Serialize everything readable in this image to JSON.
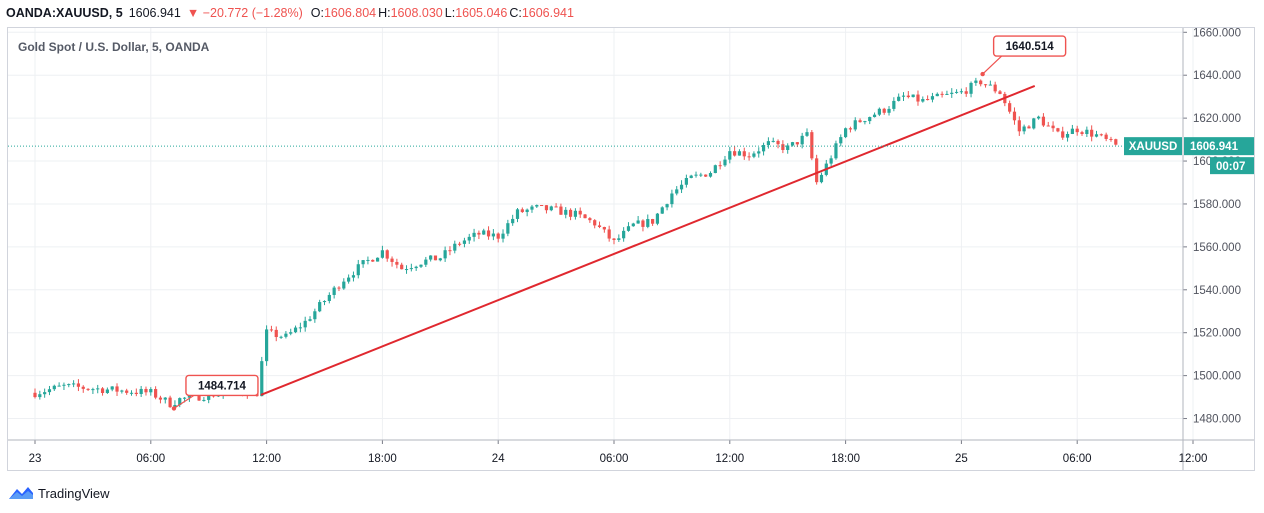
{
  "header": {
    "symbol": "OANDA:XAUUSD, 5",
    "last": "1606.941",
    "arrow": "▼",
    "change": "−20.772 (−1.28%)",
    "open_label": "O:",
    "open": "1606.804",
    "high_label": "H:",
    "high": "1608.030",
    "low_label": "L:",
    "low": "1605.046",
    "close_label": "C:",
    "close": "1606.941"
  },
  "chart_data": {
    "type": "candlestick",
    "title": "Gold Spot / U.S. Dollar, 5, OANDA",
    "ylim": [
      1470,
      1662
    ],
    "y_ticks": [
      "1660.000",
      "1640.000",
      "1620.000",
      "1600.000",
      "1580.000",
      "1560.000",
      "1540.000",
      "1520.000",
      "1500.000",
      "1480.000"
    ],
    "x_ticks": [
      "23",
      "06:00",
      "12:00",
      "18:00",
      "24",
      "06:00",
      "12:00",
      "18:00",
      "25",
      "06:00",
      "12:00"
    ],
    "price_path_hours": [
      [
        0,
        1492
      ],
      [
        1.5,
        1495
      ],
      [
        3,
        1494
      ],
      [
        4.5,
        1493
      ],
      [
        6,
        1492
      ],
      [
        7,
        1487
      ],
      [
        7.5,
        1489
      ],
      [
        9,
        1491
      ],
      [
        10.5,
        1493
      ],
      [
        11.5,
        1492
      ],
      [
        12,
        1520
      ],
      [
        13,
        1518
      ],
      [
        14,
        1525
      ],
      [
        15,
        1535
      ],
      [
        16,
        1545
      ],
      [
        17,
        1552
      ],
      [
        18,
        1558
      ],
      [
        19,
        1550
      ],
      [
        20,
        1553
      ],
      [
        21,
        1555
      ],
      [
        22,
        1562
      ],
      [
        23,
        1566
      ],
      [
        24,
        1565
      ],
      [
        25,
        1576
      ],
      [
        26,
        1578
      ],
      [
        27,
        1577
      ],
      [
        28,
        1575
      ],
      [
        29,
        1571
      ],
      [
        30,
        1562
      ],
      [
        31,
        1570
      ],
      [
        32,
        1572
      ],
      [
        33,
        1585
      ],
      [
        34,
        1592
      ],
      [
        35,
        1595
      ],
      [
        36,
        1605
      ],
      [
        37,
        1603
      ],
      [
        38,
        1608
      ],
      [
        39,
        1606
      ],
      [
        40,
        1612
      ],
      [
        40.5,
        1590
      ],
      [
        41,
        1598
      ],
      [
        42,
        1615
      ],
      [
        43,
        1620
      ],
      [
        44,
        1624
      ],
      [
        45,
        1630
      ],
      [
        46,
        1628
      ],
      [
        47,
        1630
      ],
      [
        48,
        1632
      ],
      [
        49,
        1637
      ],
      [
        50,
        1632
      ],
      [
        51,
        1614
      ],
      [
        52,
        1620
      ],
      [
        53,
        1612
      ],
      [
        54,
        1615
      ],
      [
        55,
        1612
      ],
      [
        56,
        1607
      ]
    ],
    "annotations": [
      {
        "label": "1640.514",
        "hour": 49.1,
        "price": 1640.514
      },
      {
        "label": "1484.714",
        "hour": 7.2,
        "price": 1484.714
      }
    ],
    "trendline": {
      "start": [
        11.7,
        1491
      ],
      "end": [
        51.8,
        1635
      ]
    },
    "current_price": {
      "symbol": "XAUUSD",
      "price": "1606.941",
      "countdown": "00:07",
      "value": 1606.941
    },
    "grid": true
  },
  "footer": {
    "brand": "TradingView"
  },
  "colors": {
    "up": "#26a69a",
    "down": "#ef5350",
    "trend": "#e0282f",
    "label": "#26a69a"
  }
}
